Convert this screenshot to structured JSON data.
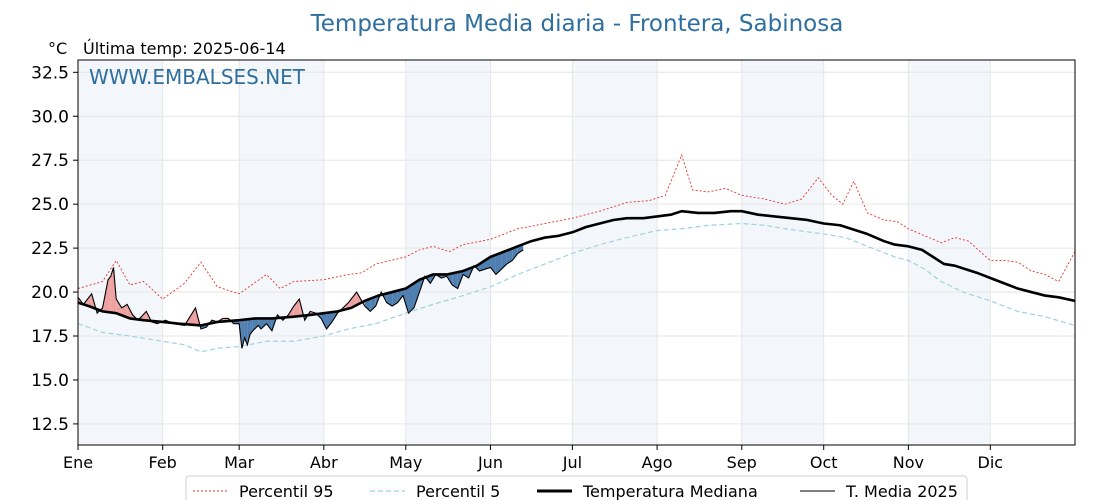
{
  "chart_data": {
    "type": "line",
    "title": "Temperatura Media diaria - Frontera, Sabinosa",
    "unit_label": "°C",
    "last_temp_label": "Última temp: 2025-06-14",
    "watermark": "WWW.EMBALSES.NET",
    "x_labels": [
      "Ene",
      "Feb",
      "Mar",
      "Abr",
      "May",
      "Jun",
      "Jul",
      "Ago",
      "Sep",
      "Oct",
      "Nov",
      "Dic"
    ],
    "month_start_days": [
      1,
      32,
      60,
      91,
      121,
      152,
      182,
      213,
      244,
      274,
      305,
      335
    ],
    "xlim": [
      1,
      366
    ],
    "ylim": [
      11.3,
      33.2
    ],
    "yticks": [
      12.5,
      15.0,
      17.5,
      20.0,
      22.5,
      25.0,
      27.5,
      30.0,
      32.5
    ],
    "grid": true,
    "legend_position": "bottom",
    "colors": {
      "p95": "#e8302a",
      "p5": "#9dd2e0",
      "median": "#000000",
      "t2025": "#000000",
      "above": "#eda1a0",
      "below": "#4f7fb0",
      "band": "#f3f7fb",
      "title": "#2f6f9f"
    },
    "series": [
      {
        "name": "Percentil 95",
        "style": "dotted-red",
        "points": [
          [
            1,
            20.2
          ],
          [
            10,
            20.6
          ],
          [
            15,
            21.8
          ],
          [
            20,
            20.4
          ],
          [
            25,
            20.6
          ],
          [
            32,
            19.6
          ],
          [
            40,
            20.5
          ],
          [
            46,
            21.7
          ],
          [
            52,
            20.3
          ],
          [
            60,
            19.9
          ],
          [
            70,
            21.0
          ],
          [
            75,
            20.2
          ],
          [
            80,
            20.6
          ],
          [
            91,
            20.7
          ],
          [
            100,
            21.0
          ],
          [
            105,
            21.1
          ],
          [
            110,
            21.6
          ],
          [
            121,
            22.0
          ],
          [
            126,
            22.4
          ],
          [
            131,
            22.6
          ],
          [
            137,
            22.3
          ],
          [
            142,
            22.7
          ],
          [
            152,
            23.0
          ],
          [
            162,
            23.6
          ],
          [
            172,
            23.9
          ],
          [
            182,
            24.2
          ],
          [
            192,
            24.6
          ],
          [
            202,
            25.1
          ],
          [
            210,
            25.2
          ],
          [
            216,
            25.5
          ],
          [
            222,
            27.8
          ],
          [
            226,
            25.8
          ],
          [
            232,
            25.7
          ],
          [
            238,
            25.9
          ],
          [
            244,
            25.5
          ],
          [
            252,
            25.3
          ],
          [
            260,
            25.0
          ],
          [
            266,
            25.3
          ],
          [
            272,
            26.5
          ],
          [
            277,
            25.5
          ],
          [
            281,
            25.0
          ],
          [
            285,
            26.3
          ],
          [
            290,
            24.5
          ],
          [
            296,
            24.1
          ],
          [
            301,
            24.0
          ],
          [
            305,
            23.6
          ],
          [
            311,
            23.2
          ],
          [
            317,
            22.8
          ],
          [
            322,
            23.1
          ],
          [
            327,
            22.9
          ],
          [
            332,
            22.2
          ],
          [
            335,
            21.8
          ],
          [
            340,
            21.8
          ],
          [
            345,
            21.7
          ],
          [
            350,
            21.2
          ],
          [
            355,
            21.0
          ],
          [
            360,
            20.6
          ],
          [
            366,
            22.3
          ]
        ]
      },
      {
        "name": "Percentil 5",
        "style": "dashed-lightblue",
        "points": [
          [
            1,
            18.2
          ],
          [
            10,
            17.7
          ],
          [
            20,
            17.5
          ],
          [
            32,
            17.2
          ],
          [
            40,
            17.0
          ],
          [
            46,
            16.6
          ],
          [
            52,
            16.8
          ],
          [
            60,
            16.9
          ],
          [
            70,
            17.2
          ],
          [
            80,
            17.2
          ],
          [
            91,
            17.5
          ],
          [
            100,
            17.9
          ],
          [
            110,
            18.2
          ],
          [
            121,
            18.8
          ],
          [
            131,
            19.3
          ],
          [
            142,
            19.8
          ],
          [
            152,
            20.3
          ],
          [
            162,
            21.0
          ],
          [
            172,
            21.6
          ],
          [
            182,
            22.2
          ],
          [
            192,
            22.7
          ],
          [
            202,
            23.1
          ],
          [
            213,
            23.5
          ],
          [
            222,
            23.6
          ],
          [
            232,
            23.8
          ],
          [
            244,
            23.9
          ],
          [
            252,
            23.8
          ],
          [
            260,
            23.6
          ],
          [
            274,
            23.3
          ],
          [
            282,
            23.1
          ],
          [
            290,
            22.6
          ],
          [
            300,
            22.0
          ],
          [
            305,
            21.8
          ],
          [
            311,
            21.3
          ],
          [
            317,
            20.6
          ],
          [
            325,
            20.0
          ],
          [
            335,
            19.5
          ],
          [
            345,
            18.9
          ],
          [
            355,
            18.6
          ],
          [
            366,
            18.1
          ]
        ]
      },
      {
        "name": "Temperatura Mediana",
        "style": "thick-black",
        "points": [
          [
            1,
            19.4
          ],
          [
            5,
            19.2
          ],
          [
            10,
            18.9
          ],
          [
            15,
            18.8
          ],
          [
            20,
            18.5
          ],
          [
            25,
            18.4
          ],
          [
            32,
            18.3
          ],
          [
            38,
            18.2
          ],
          [
            46,
            18.1
          ],
          [
            52,
            18.3
          ],
          [
            60,
            18.4
          ],
          [
            66,
            18.5
          ],
          [
            72,
            18.5
          ],
          [
            80,
            18.6
          ],
          [
            86,
            18.7
          ],
          [
            91,
            18.8
          ],
          [
            96,
            18.9
          ],
          [
            101,
            19.1
          ],
          [
            106,
            19.5
          ],
          [
            111,
            19.8
          ],
          [
            116,
            20.0
          ],
          [
            121,
            20.2
          ],
          [
            126,
            20.7
          ],
          [
            131,
            21.0
          ],
          [
            136,
            21.0
          ],
          [
            142,
            21.2
          ],
          [
            147,
            21.5
          ],
          [
            152,
            22.0
          ],
          [
            157,
            22.3
          ],
          [
            162,
            22.6
          ],
          [
            167,
            22.9
          ],
          [
            172,
            23.1
          ],
          [
            177,
            23.2
          ],
          [
            182,
            23.4
          ],
          [
            187,
            23.7
          ],
          [
            192,
            23.9
          ],
          [
            197,
            24.1
          ],
          [
            202,
            24.2
          ],
          [
            208,
            24.2
          ],
          [
            213,
            24.3
          ],
          [
            218,
            24.4
          ],
          [
            222,
            24.6
          ],
          [
            228,
            24.5
          ],
          [
            234,
            24.5
          ],
          [
            240,
            24.6
          ],
          [
            244,
            24.6
          ],
          [
            250,
            24.4
          ],
          [
            256,
            24.3
          ],
          [
            262,
            24.2
          ],
          [
            268,
            24.1
          ],
          [
            274,
            23.9
          ],
          [
            280,
            23.8
          ],
          [
            284,
            23.6
          ],
          [
            290,
            23.3
          ],
          [
            296,
            22.9
          ],
          [
            300,
            22.7
          ],
          [
            305,
            22.6
          ],
          [
            310,
            22.4
          ],
          [
            314,
            22.0
          ],
          [
            318,
            21.6
          ],
          [
            322,
            21.5
          ],
          [
            326,
            21.3
          ],
          [
            330,
            21.1
          ],
          [
            335,
            20.8
          ],
          [
            340,
            20.5
          ],
          [
            345,
            20.2
          ],
          [
            350,
            20.0
          ],
          [
            355,
            19.8
          ],
          [
            360,
            19.7
          ],
          [
            366,
            19.5
          ]
        ]
      },
      {
        "name": "T. Media 2025",
        "style": "thin-black",
        "points": [
          [
            1,
            19.7
          ],
          [
            3,
            19.3
          ],
          [
            6,
            19.9
          ],
          [
            8,
            18.8
          ],
          [
            10,
            19.1
          ],
          [
            12,
            20.7
          ],
          [
            13,
            20.9
          ],
          [
            14,
            21.4
          ],
          [
            15,
            19.6
          ],
          [
            17,
            19.1
          ],
          [
            19,
            19.3
          ],
          [
            21,
            18.7
          ],
          [
            23,
            18.4
          ],
          [
            26,
            18.9
          ],
          [
            28,
            18.3
          ],
          [
            30,
            18.2
          ],
          [
            33,
            18.4
          ],
          [
            36,
            18.2
          ],
          [
            40,
            18.1
          ],
          [
            42,
            18.6
          ],
          [
            44,
            19.1
          ],
          [
            46,
            17.9
          ],
          [
            48,
            18.0
          ],
          [
            50,
            18.4
          ],
          [
            52,
            18.3
          ],
          [
            54,
            18.5
          ],
          [
            56,
            18.5
          ],
          [
            58,
            18.2
          ],
          [
            60,
            18.2
          ],
          [
            61,
            16.8
          ],
          [
            62,
            17.4
          ],
          [
            63,
            17.0
          ],
          [
            64,
            17.6
          ],
          [
            65,
            17.8
          ],
          [
            67,
            18.1
          ],
          [
            68,
            17.9
          ],
          [
            70,
            18.2
          ],
          [
            72,
            17.8
          ],
          [
            74,
            18.7
          ],
          [
            76,
            18.4
          ],
          [
            78,
            18.7
          ],
          [
            80,
            19.2
          ],
          [
            82,
            19.6
          ],
          [
            84,
            18.4
          ],
          [
            86,
            18.9
          ],
          [
            88,
            18.8
          ],
          [
            90,
            18.5
          ],
          [
            92,
            17.9
          ],
          [
            94,
            18.3
          ],
          [
            96,
            18.8
          ],
          [
            98,
            19.1
          ],
          [
            100,
            19.4
          ],
          [
            103,
            20.0
          ],
          [
            106,
            19.2
          ],
          [
            108,
            18.9
          ],
          [
            110,
            19.2
          ],
          [
            112,
            20.0
          ],
          [
            114,
            19.4
          ],
          [
            116,
            19.2
          ],
          [
            118,
            19.4
          ],
          [
            120,
            19.8
          ],
          [
            122,
            18.8
          ],
          [
            124,
            19.1
          ],
          [
            126,
            20.0
          ],
          [
            128,
            20.9
          ],
          [
            130,
            20.5
          ],
          [
            132,
            21.0
          ],
          [
            134,
            20.8
          ],
          [
            136,
            20.9
          ],
          [
            138,
            20.4
          ],
          [
            140,
            20.2
          ],
          [
            142,
            21.0
          ],
          [
            144,
            20.8
          ],
          [
            146,
            21.5
          ],
          [
            148,
            21.2
          ],
          [
            150,
            21.3
          ],
          [
            152,
            21.4
          ],
          [
            154,
            21.0
          ],
          [
            156,
            21.3
          ],
          [
            158,
            21.6
          ],
          [
            160,
            21.8
          ],
          [
            162,
            22.2
          ],
          [
            164,
            22.4
          ]
        ]
      }
    ],
    "legend": {
      "p95": "Percentil 95",
      "p5": "Percentil 5",
      "median": "Temperatura Mediana",
      "t2025": "T. Media 2025"
    }
  }
}
